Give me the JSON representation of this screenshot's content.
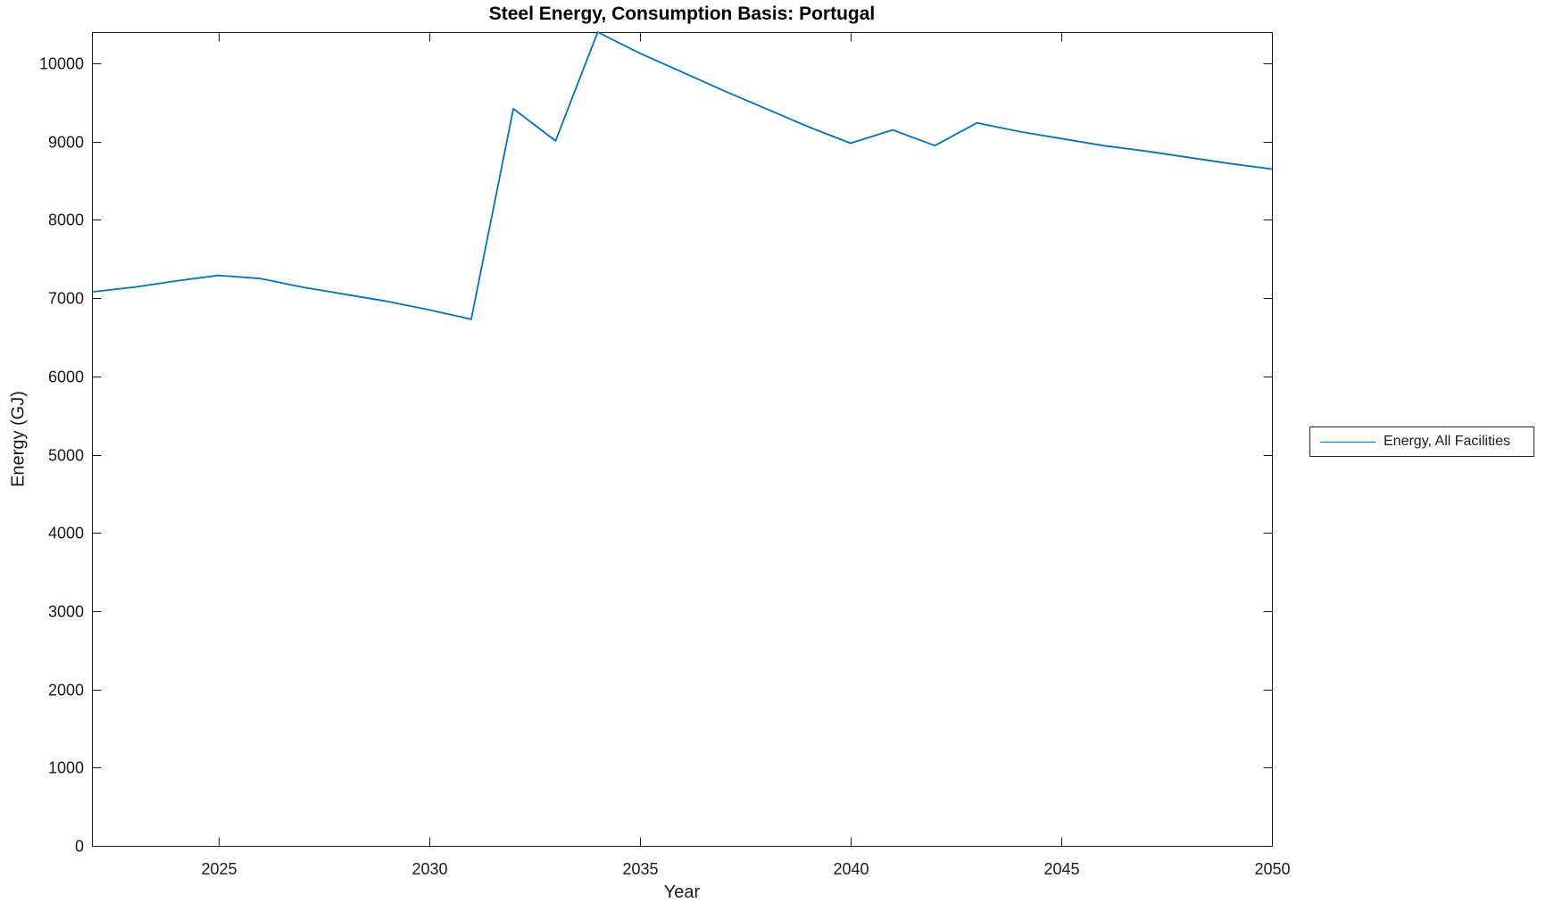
{
  "figure": {
    "title": "Steel Energy, Consumption Basis: Portugal",
    "xlabel": "Year",
    "ylabel": "Energy (GJ)"
  },
  "legend": {
    "label": "Energy, All Facilities",
    "line_color": "#0072BD",
    "position": "right-outside"
  },
  "colors": {
    "line": "#0072BD",
    "axis": "#1a1a1a",
    "tick_text": "#1a1a1a",
    "background": "#ffffff"
  },
  "chart_data": {
    "type": "line",
    "title": "Steel Energy, Consumption Basis: Portugal",
    "xlabel": "Year",
    "ylabel": "Energy (GJ)",
    "xlim": [
      2022,
      2050
    ],
    "ylim": [
      0,
      10400
    ],
    "x_ticks": [
      2025,
      2030,
      2035,
      2040,
      2045,
      2050
    ],
    "y_ticks": [
      0,
      1000,
      2000,
      3000,
      4000,
      5000,
      6000,
      7000,
      8000,
      9000,
      10000
    ],
    "grid": false,
    "box": true,
    "legend_position": "right-outside",
    "series": [
      {
        "name": "Energy, All Facilities",
        "color": "#0072BD",
        "x": [
          2022,
          2023,
          2024,
          2025,
          2026,
          2027,
          2028,
          2029,
          2030,
          2031,
          2032,
          2033,
          2034,
          2035,
          2036,
          2037,
          2038,
          2039,
          2040,
          2041,
          2042,
          2043,
          2044,
          2045,
          2046,
          2047,
          2048,
          2049,
          2050
        ],
        "values": [
          7080,
          7140,
          7220,
          7290,
          7250,
          7140,
          7050,
          6960,
          6850,
          6730,
          9420,
          9010,
          10400,
          10130,
          9890,
          9650,
          9420,
          9190,
          8980,
          9150,
          8950,
          9240,
          9130,
          9040,
          8950,
          8880,
          8800,
          8720,
          8650
        ]
      }
    ]
  }
}
